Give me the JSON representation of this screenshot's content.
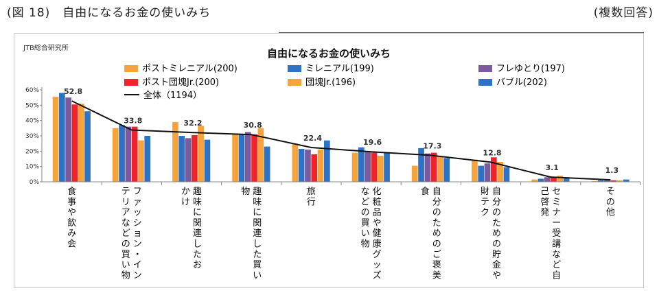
{
  "header": {
    "caption": "(図 18)　自由になるお金の使いみち",
    "note": "(複数回答)"
  },
  "source": "JTB総合研究所",
  "chart_data": {
    "type": "bar",
    "title": "自由になるお金の使いみち",
    "ylim": [
      0,
      60
    ],
    "y_ticks": [
      "0%",
      "10%",
      "20%",
      "30%",
      "40%",
      "50%",
      "60%"
    ],
    "categories": [
      [
        "食事や飲み会"
      ],
      [
        "ファッション・イン",
        "テリアなどの買い物"
      ],
      [
        "趣味に関連したお",
        "かけ"
      ],
      [
        "趣味に関連した買い",
        "物"
      ],
      [
        "旅行"
      ],
      [
        "化粧品や健康グッズ",
        "などの買い物"
      ],
      [
        "自分のためのご褒美",
        "食"
      ],
      [
        "自分のための貯金や",
        "財テク"
      ],
      [
        "セミナー受講など自",
        "己啓発"
      ],
      [
        "その他"
      ]
    ],
    "series": [
      {
        "name": "ポストミレニアル(200)",
        "color": "#F7A33B",
        "values": [
          55.5,
          35,
          39,
          31,
          25,
          19,
          10.5,
          14.5,
          1.5,
          0.5
        ]
      },
      {
        "name": "ミレニアル(199)",
        "color": "#2E72C6",
        "values": [
          58,
          37,
          30,
          31,
          21.5,
          22.5,
          22,
          10.5,
          2,
          1
        ]
      },
      {
        "name": "フレゆとり(197)",
        "color": "#7B5B9E",
        "values": [
          55,
          36,
          28.5,
          32.5,
          21,
          20,
          18.5,
          12,
          3,
          1
        ]
      },
      {
        "name": "ポスト団塊Jr.(200)",
        "color": "#F0232C",
        "values": [
          50.5,
          36,
          30.5,
          31,
          18,
          19,
          19,
          16,
          3,
          1
        ]
      },
      {
        "name": "団塊Jr.(196)",
        "color": "#F7A33B",
        "values": [
          51,
          27,
          36.5,
          35,
          21,
          17,
          16.5,
          13,
          4,
          1
        ]
      },
      {
        "name": "バブル(202)",
        "color": "#2E72C6",
        "values": [
          46,
          30,
          27.5,
          23,
          27,
          19,
          15.5,
          9.5,
          3,
          1.5
        ]
      }
    ],
    "total": {
      "name": "全体（1194）",
      "values": [
        52.8,
        33.8,
        32.2,
        30.8,
        22.4,
        19.6,
        17.3,
        12.8,
        3.1,
        1.3
      ],
      "labels": [
        "52.8",
        "33.8",
        "32.2",
        "30.8",
        "22.4",
        "19.6",
        "17.3",
        "12.8",
        "3.1",
        "1.3"
      ]
    },
    "legend_position": "top"
  }
}
